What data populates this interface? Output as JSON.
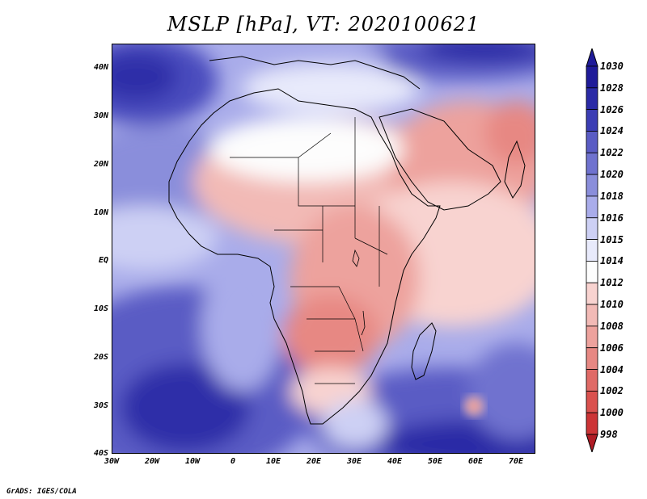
{
  "title": "MSLP [hPa], VT: 2020100621",
  "credit": "GrADS: IGES/COLA",
  "variable": "Mean sea level pressure",
  "units": "hPa",
  "valid_time": "2020100621",
  "map": {
    "region": "Africa",
    "lon_range": [
      -30,
      75
    ],
    "lat_range": [
      -40,
      45
    ],
    "x_ticks": [
      "30W",
      "20W",
      "10W",
      "0",
      "10E",
      "20E",
      "30E",
      "40E",
      "50E",
      "60E",
      "70E"
    ],
    "y_ticks": [
      "40N",
      "30N",
      "20N",
      "10N",
      "EQ",
      "10S",
      "20S",
      "30S",
      "40S"
    ]
  },
  "colorbar": {
    "levels": [
      "1030",
      "1028",
      "1026",
      "1024",
      "1022",
      "1020",
      "1018",
      "1016",
      "1015",
      "1014",
      "1012",
      "1010",
      "1008",
      "1006",
      "1004",
      "1002",
      "1000",
      "998"
    ],
    "colors": [
      "#1f1b99",
      "#2a2aa6",
      "#3b3db4",
      "#5a5cc4",
      "#6f72cf",
      "#8a8edb",
      "#a9acea",
      "#cdd0f4",
      "#e8eafb",
      "#fdfdfd",
      "#f8d3d0",
      "#f2bab6",
      "#eda29d",
      "#e78883",
      "#e06a66",
      "#da514e",
      "#cc3436",
      "#b01c25"
    ]
  },
  "colors": {
    "high": "#27249e",
    "low": "#b01c25",
    "coast": "#000000"
  }
}
